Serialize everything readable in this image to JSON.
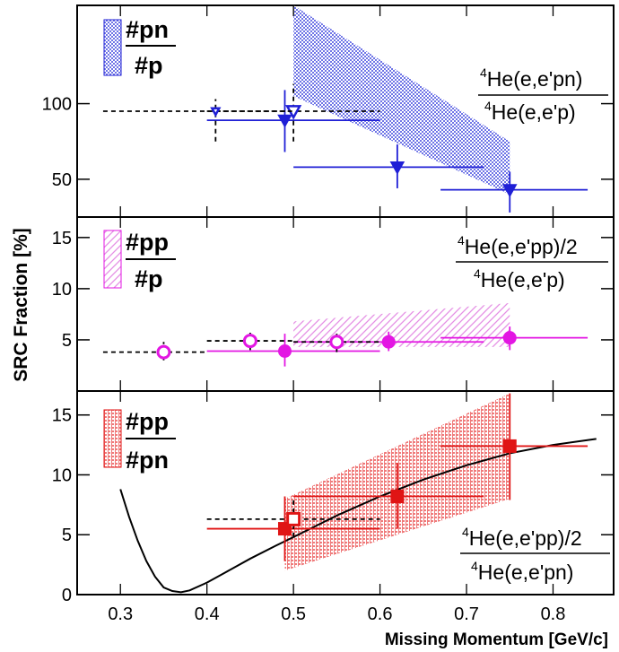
{
  "colors": {
    "pn": "#1f1fd6",
    "pp": "#e316e3",
    "ppn": "#e01515",
    "band_pn": "#6e74e6",
    "band_pp": "#e58ee5",
    "band_ppn": "#ef7a7a",
    "curve": "#000000"
  },
  "figure": {
    "ylabel": "SRC Fraction [%]",
    "xlabel": "Missing Momentum [GeV/c]"
  },
  "chart_data": [
    {
      "type": "scatter",
      "panel": "top",
      "legend": {
        "numerator": "#pn",
        "denominator": "#p"
      },
      "ratio": {
        "numerator": "He(e,e'pn)",
        "denominator": "He(e,e'p)",
        "superscript": "4"
      },
      "ylim": [
        25,
        165
      ],
      "yticks": [
        50,
        100
      ],
      "xlim": [
        0.25,
        0.87
      ],
      "series": [
        {
          "marker": "filled-triangle-down",
          "points": [
            {
              "x": 0.49,
              "y": 89,
              "xerr": [
                0.4,
                0.6
              ],
              "yerr": [
                68,
                109
              ]
            },
            {
              "x": 0.62,
              "y": 58,
              "xerr": [
                0.5,
                0.72
              ],
              "yerr": [
                44,
                73
              ]
            },
            {
              "x": 0.75,
              "y": 43,
              "xerr": [
                0.67,
                0.84
              ],
              "yerr": [
                28,
                55
              ]
            }
          ]
        },
        {
          "marker": "open-triangle-down",
          "points": [
            {
              "x": 0.5,
              "y": 95,
              "xerr": [
                0.28,
                0.6
              ],
              "yerr": [
                75,
                113
              ]
            }
          ]
        },
        {
          "marker": "open-triangle-down-small",
          "points": [
            {
              "x": 0.41,
              "y": 95,
              "xerr": [
                0.4,
                0.5
              ],
              "yerr": [
                75,
                103
              ]
            }
          ]
        }
      ],
      "band": {
        "x": [
          0.5,
          0.75
        ],
        "upper": [
          165,
          75
        ],
        "lower": [
          105,
          40
        ]
      }
    },
    {
      "type": "scatter",
      "panel": "middle",
      "legend": {
        "numerator": "#pp",
        "denominator": "#p"
      },
      "ratio": {
        "numerator": "He(e,e'pp)/2",
        "denominator": "He(e,e'p)",
        "superscript": "4"
      },
      "ylim": [
        0,
        17
      ],
      "yticks": [
        5,
        10,
        15
      ],
      "xlim": [
        0.25,
        0.87
      ],
      "series": [
        {
          "marker": "filled-circle",
          "points": [
            {
              "x": 0.49,
              "y": 3.9,
              "xerr": [
                0.4,
                0.6
              ],
              "yerr": [
                2.4,
                5.6
              ]
            },
            {
              "x": 0.61,
              "y": 4.8,
              "xerr": [
                0.5,
                0.72
              ],
              "yerr": [
                3.9,
                5.8
              ]
            },
            {
              "x": 0.75,
              "y": 5.2,
              "xerr": [
                0.67,
                0.84
              ],
              "yerr": [
                4.0,
                6.3
              ]
            }
          ]
        },
        {
          "marker": "open-circle",
          "points": [
            {
              "x": 0.35,
              "y": 3.8,
              "xerr": [
                0.28,
                0.4
              ],
              "yerr": [
                3.0,
                4.8
              ]
            },
            {
              "x": 0.45,
              "y": 4.9,
              "xerr": [
                0.4,
                0.5
              ],
              "yerr": [
                4.0,
                5.7
              ]
            },
            {
              "x": 0.55,
              "y": 4.8,
              "xerr": [
                0.5,
                0.6
              ],
              "yerr": [
                3.8,
                5.6
              ]
            }
          ]
        }
      ],
      "band": {
        "x": [
          0.5,
          0.75
        ],
        "upper": [
          6.8,
          8.6
        ],
        "lower": [
          4.3,
          4.3
        ]
      }
    },
    {
      "type": "line",
      "panel": "bottom",
      "legend": {
        "numerator": "#pp",
        "denominator": "#pn"
      },
      "ratio": {
        "numerator": "He(e,e'pp)/2",
        "denominator": "He(e,e'pn)",
        "superscript": "4"
      },
      "ylim": [
        0,
        17
      ],
      "yticks": [
        0,
        5,
        10,
        15
      ],
      "xlim": [
        0.25,
        0.87
      ],
      "xticks": [
        0.3,
        0.4,
        0.5,
        0.6,
        0.7,
        0.8
      ],
      "series": [
        {
          "marker": "filled-square",
          "points": [
            {
              "x": 0.49,
              "y": 5.5,
              "xerr": [
                0.4,
                0.6
              ],
              "yerr": [
                2.8,
                8.2
              ]
            },
            {
              "x": 0.62,
              "y": 8.2,
              "xerr": [
                0.5,
                0.72
              ],
              "yerr": [
                5.5,
                11.0
              ]
            },
            {
              "x": 0.75,
              "y": 12.4,
              "xerr": [
                0.67,
                0.84
              ],
              "yerr": [
                7.9,
                16.8
              ]
            }
          ]
        },
        {
          "marker": "open-square",
          "points": [
            {
              "x": 0.5,
              "y": 6.3,
              "xerr": [
                0.4,
                0.6
              ],
              "yerr": [
                4.8,
                8.0
              ]
            }
          ]
        }
      ],
      "curve": {
        "x": [
          0.3,
          0.31,
          0.32,
          0.33,
          0.34,
          0.35,
          0.36,
          0.37,
          0.38,
          0.4,
          0.42,
          0.45,
          0.48,
          0.5,
          0.55,
          0.6,
          0.65,
          0.7,
          0.75,
          0.8,
          0.85
        ],
        "y": [
          8.8,
          6.5,
          4.5,
          2.8,
          1.5,
          0.6,
          0.3,
          0.2,
          0.35,
          1.0,
          1.8,
          3.0,
          4.1,
          4.8,
          6.6,
          8.2,
          9.6,
          10.8,
          11.8,
          12.5,
          13.0
        ]
      },
      "band": {
        "x": [
          0.49,
          0.75
        ],
        "upper": [
          8.0,
          16.8
        ],
        "lower": [
          2.0,
          8.0
        ]
      }
    }
  ]
}
